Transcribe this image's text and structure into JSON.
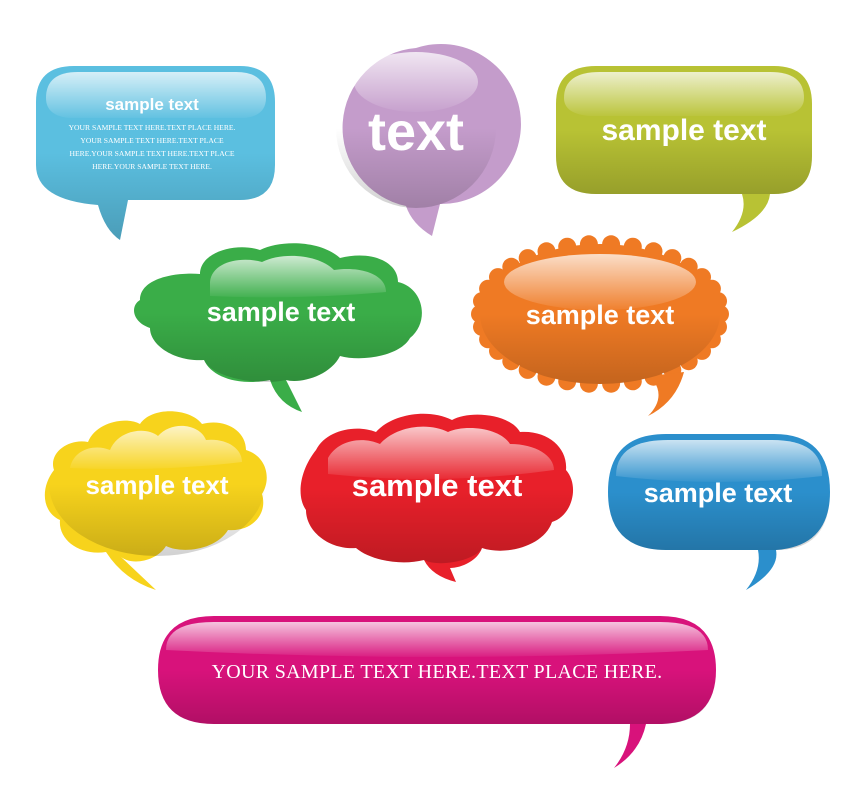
{
  "bubbles": {
    "blue_rect": {
      "title": "sample text",
      "lines": [
        "YOUR SAMPLE TEXT HERE.TEXT PLACE HERE.",
        "YOUR SAMPLE TEXT HERE.TEXT PLACE",
        "HERE.YOUR SAMPLE TEXT HERE.TEXT PLACE",
        "HERE.YOUR SAMPLE TEXT HERE."
      ],
      "color": "#5bbfe0"
    },
    "purple_round": {
      "label": "text",
      "color": "#c49ccb"
    },
    "lime_rect": {
      "label": "sample text",
      "color": "#b8c234"
    },
    "green_cloud": {
      "label": "sample text",
      "color": "#3aad48"
    },
    "orange_scallop": {
      "label": "sample text",
      "color": "#ef7a24"
    },
    "yellow_cloud": {
      "label": "sample text",
      "color": "#f7d31c"
    },
    "red_cloud": {
      "label": "sample text",
      "color": "#e8202a"
    },
    "blue_oval": {
      "label": "sample text",
      "color": "#2b8fcc"
    },
    "pink_wide": {
      "label": "YOUR SAMPLE TEXT HERE.TEXT PLACE HERE.",
      "color": "#d8127b"
    }
  }
}
